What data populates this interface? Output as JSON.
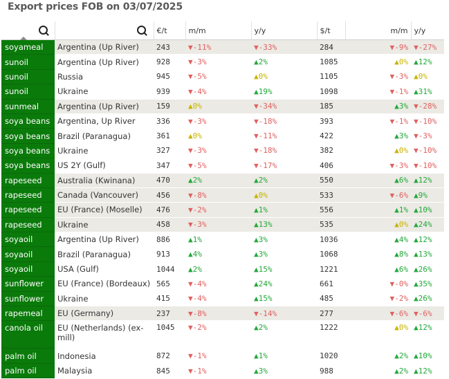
{
  "title": "Export prices FOB on 03/07/2025",
  "headers": {
    "eur": "€/t",
    "mm1": "m/m",
    "yy1": "y/y",
    "usd": "$/t",
    "mm2": "m/m",
    "yy2": "y/y"
  },
  "icons": {
    "search1": "search-icon",
    "search2": "search-icon",
    "sort": "sort-triangle-icon"
  },
  "colors": {
    "product_bg": "#0a7a0a",
    "up": "#22a83a",
    "down": "#e06060",
    "flat": "#c9b400",
    "shade": "#ebeae4"
  },
  "rows": [
    {
      "product": "soyameal",
      "origin": "Argentina (Up River)",
      "eur": "243",
      "mm1": "▼-11%",
      "yy1": "▼-33%",
      "usd": "284",
      "mm2": "▼-9%",
      "yy2": "▼-27%"
    },
    {
      "product": "sunoil",
      "origin": "Argentina (Up River)",
      "eur": "928",
      "mm1": "▼-3%",
      "yy1": "▲2%",
      "usd": "1085",
      "mm2": "▲0%",
      "yy2": "▲12%"
    },
    {
      "product": "sunoil",
      "origin": "Russia",
      "eur": "945",
      "mm1": "▼-5%",
      "yy1": "▲0%",
      "usd": "1105",
      "mm2": "▼-3%",
      "yy2": "▲0%"
    },
    {
      "product": "sunoil",
      "origin": "Ukraine",
      "eur": "939",
      "mm1": "▼-4%",
      "yy1": "▲19%",
      "usd": "1098",
      "mm2": "▼-1%",
      "yy2": "▲31%"
    },
    {
      "product": "sunmeal",
      "origin": "Argentina (Up River)",
      "eur": "159",
      "mm1": "▲0%",
      "yy1": "▼-34%",
      "usd": "185",
      "mm2": "▲3%",
      "yy2": "▼-28%"
    },
    {
      "product": "soya beans",
      "origin": "Argentina, Up River",
      "eur": "336",
      "mm1": "▼-3%",
      "yy1": "▼-18%",
      "usd": "393",
      "mm2": "▼-1%",
      "yy2": "▼-10%"
    },
    {
      "product": "soya beans",
      "origin": "Brazil (Paranagua)",
      "eur": "361",
      "mm1": "▲0%",
      "yy1": "▼-11%",
      "usd": "422",
      "mm2": "▲3%",
      "yy2": "▼-3%"
    },
    {
      "product": "soya beans",
      "origin": "Ukraine",
      "eur": "327",
      "mm1": "▼-3%",
      "yy1": "▼-18%",
      "usd": "382",
      "mm2": "▲0%",
      "yy2": "▼-10%"
    },
    {
      "product": "soya beans",
      "origin": "US 2Y (Gulf)",
      "eur": "347",
      "mm1": "▼-5%",
      "yy1": "▼-17%",
      "usd": "406",
      "mm2": "▼-3%",
      "yy2": "▼-10%"
    },
    {
      "product": "rapeseed",
      "origin": "Australia (Kwinana)",
      "eur": "470",
      "mm1": "▲2%",
      "yy1": "▲2%",
      "usd": "550",
      "mm2": "▲6%",
      "yy2": "▲12%"
    },
    {
      "product": "rapeseed",
      "origin": "Canada (Vancouver)",
      "eur": "456",
      "mm1": "▼-8%",
      "yy1": "▲0%",
      "usd": "533",
      "mm2": "▼-6%",
      "yy2": "▲9%"
    },
    {
      "product": "rapeseed",
      "origin": "EU (France) (Moselle)",
      "eur": "476",
      "mm1": "▼-2%",
      "yy1": "▲1%",
      "usd": "556",
      "mm2": "▲1%",
      "yy2": "▲10%"
    },
    {
      "product": "rapeseed",
      "origin": "Ukraine",
      "eur": "458",
      "mm1": "▼-3%",
      "yy1": "▲13%",
      "usd": "535",
      "mm2": "▲0%",
      "yy2": "▲24%"
    },
    {
      "product": "soyaoil",
      "origin": "Argentina (Up River)",
      "eur": "886",
      "mm1": "▲1%",
      "yy1": "▲3%",
      "usd": "1036",
      "mm2": "▲4%",
      "yy2": "▲12%"
    },
    {
      "product": "soyaoil",
      "origin": "Brazil (Paranagua)",
      "eur": "913",
      "mm1": "▲4%",
      "yy1": "▲3%",
      "usd": "1068",
      "mm2": "▲8%",
      "yy2": "▲13%"
    },
    {
      "product": "soyaoil",
      "origin": "USA (Gulf)",
      "eur": "1044",
      "mm1": "▲2%",
      "yy1": "▲15%",
      "usd": "1221",
      "mm2": "▲6%",
      "yy2": "▲26%"
    },
    {
      "product": "sunflower",
      "origin": "EU (France) (Bordeaux)",
      "eur": "565",
      "mm1": "▼-4%",
      "yy1": "▲24%",
      "usd": "661",
      "mm2": "▼-0%",
      "yy2": "▲35%"
    },
    {
      "product": "sunflower",
      "origin": "Ukraine",
      "eur": "415",
      "mm1": "▼-4%",
      "yy1": "▲15%",
      "usd": "485",
      "mm2": "▼-2%",
      "yy2": "▲26%"
    },
    {
      "product": "rapemeal",
      "origin": "EU (Germany)",
      "eur": "237",
      "mm1": "▼-8%",
      "yy1": "▼-14%",
      "usd": "277",
      "mm2": "▼-6%",
      "yy2": "▼-6%"
    },
    {
      "product": "canola oil",
      "origin": "EU (Netherlands) (ex-mill)",
      "eur": "1045",
      "mm1": "▼-2%",
      "yy1": "▲2%",
      "usd": "1222",
      "mm2": "▲0%",
      "yy2": "▲12%"
    },
    {
      "product": "palm oil",
      "origin": "Indonesia",
      "eur": "872",
      "mm1": "▼-1%",
      "yy1": "▲1%",
      "usd": "1020",
      "mm2": "▲2%",
      "yy2": "▲10%"
    },
    {
      "product": "palm oil",
      "origin": "Malaysia",
      "eur": "845",
      "mm1": "▼-1%",
      "yy1": "▲3%",
      "usd": "988",
      "mm2": "▲2%",
      "yy2": "▲12%"
    }
  ]
}
